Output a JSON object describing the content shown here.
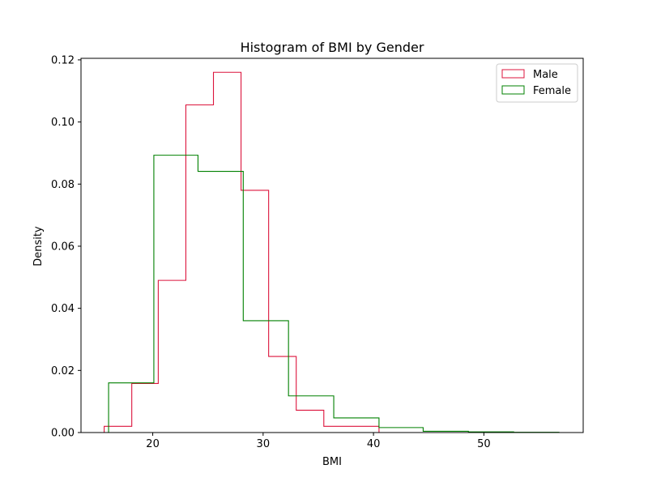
{
  "chart_data": {
    "type": "histogram-step",
    "title": "Histogram of BMI by Gender",
    "xlabel": "BMI",
    "ylabel": "Density",
    "xlim": [
      13.5,
      59
    ],
    "ylim": [
      0,
      0.1205
    ],
    "xticks": [
      20,
      30,
      40,
      50
    ],
    "xtick_labels": [
      "20",
      "30",
      "40",
      "50"
    ],
    "yticks": [
      0,
      0.02,
      0.04,
      0.06,
      0.08,
      0.1,
      0.12
    ],
    "ytick_labels": [
      "0.00",
      "0.02",
      "0.04",
      "0.06",
      "0.08",
      "0.10",
      "0.12"
    ],
    "grid": false,
    "legend_position": "top-right",
    "series": [
      {
        "name": "Male",
        "color": "#dc143c",
        "bin_edges": [
          15.6,
          18.1,
          20.5,
          23.0,
          25.5,
          28.0,
          30.5,
          33.0,
          35.5,
          38.0,
          40.5
        ],
        "values": [
          0.002,
          0.0158,
          0.049,
          0.1055,
          0.116,
          0.078,
          0.0245,
          0.0072,
          0.002,
          0.002
        ]
      },
      {
        "name": "Female",
        "color": "#008000",
        "bin_edges": [
          16.0,
          20.1,
          24.1,
          28.2,
          32.3,
          36.4,
          40.5,
          44.5,
          48.6,
          52.7,
          56.8
        ],
        "values": [
          0.016,
          0.0893,
          0.0841,
          0.036,
          0.0118,
          0.0047,
          0.0016,
          0.0004,
          0.0002,
          0.0001
        ]
      }
    ]
  }
}
